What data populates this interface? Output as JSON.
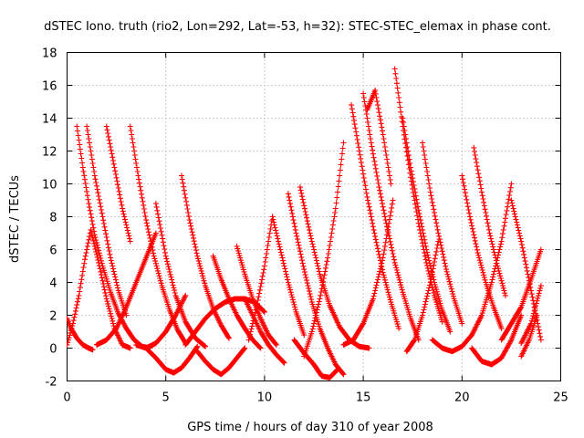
{
  "chart_data": {
    "type": "scatter",
    "title": "dSTEC Iono. truth (rio2, Lon=292, Lat=-53, h=32): STEC-STEC_elemax in phase cont.",
    "xlabel": "GPS time / hours of day 310 of year 2008",
    "ylabel": "dSTEC  / TECUs",
    "xlim": [
      0,
      25
    ],
    "ylim": [
      -2,
      18
    ],
    "x_ticks": [
      0,
      5,
      10,
      15,
      20,
      25
    ],
    "y_ticks": [
      -2,
      0,
      2,
      4,
      6,
      8,
      10,
      12,
      14,
      16,
      18
    ],
    "grid": true,
    "marker": "+",
    "series_color": "#ff0000",
    "series": [
      {
        "x": [
          0.0,
          0.3,
          0.6,
          0.9,
          1.2,
          1.6,
          2.0,
          2.4,
          2.8,
          3.2
        ],
        "y": [
          0.2,
          1.5,
          3.2,
          5.4,
          7.2,
          5.2,
          3.0,
          1.2,
          0.2,
          0.0
        ]
      },
      {
        "x": [
          0.0,
          0.2,
          0.5,
          0.8,
          1.1,
          1.3
        ],
        "y": [
          1.8,
          1.2,
          0.6,
          0.2,
          0.0,
          -0.1
        ]
      },
      {
        "x": [
          0.5,
          0.8,
          1.1,
          1.4,
          1.8,
          2.2,
          2.6,
          3.0,
          3.4,
          3.8,
          4.2
        ],
        "y": [
          13.5,
          11.0,
          8.8,
          6.9,
          5.0,
          3.4,
          2.1,
          1.2,
          0.5,
          0.1,
          0.0
        ]
      },
      {
        "x": [
          1.0,
          1.4,
          1.8,
          2.2,
          2.6,
          3.0
        ],
        "y": [
          13.5,
          10.5,
          8.0,
          5.5,
          3.5,
          2.0
        ]
      },
      {
        "x": [
          2.0,
          2.4,
          2.8,
          3.2
        ],
        "y": [
          13.5,
          11.0,
          8.5,
          6.5
        ]
      },
      {
        "x": [
          1.5,
          2.0,
          2.5,
          3.0,
          3.5,
          4.0,
          4.5
        ],
        "y": [
          0.2,
          0.5,
          1.2,
          2.5,
          4.0,
          5.5,
          7.0
        ]
      },
      {
        "x": [
          3.2,
          3.6,
          4.0,
          4.4,
          4.8,
          5.2,
          5.6,
          6.0
        ],
        "y": [
          13.5,
          10.5,
          7.8,
          5.6,
          3.8,
          2.3,
          1.1,
          0.3
        ]
      },
      {
        "x": [
          3.5,
          4.0,
          4.5,
          5.0,
          5.5,
          6.0
        ],
        "y": [
          0.2,
          0.0,
          0.3,
          1.0,
          2.0,
          3.2
        ]
      },
      {
        "x": [
          4.5,
          5.0,
          5.5,
          6.0,
          6.5,
          7.0
        ],
        "y": [
          8.8,
          5.6,
          3.2,
          1.6,
          0.6,
          0.1
        ]
      },
      {
        "x": [
          4.0,
          4.5,
          5.0,
          5.4
        ],
        "y": [
          0.0,
          -0.6,
          -1.3,
          -1.5
        ]
      },
      {
        "x": [
          5.4,
          5.8,
          6.2,
          6.6
        ],
        "y": [
          -1.5,
          -1.2,
          -0.6,
          0.1
        ]
      },
      {
        "x": [
          5.8,
          6.2,
          6.6,
          7.0,
          7.4,
          7.8,
          8.2
        ],
        "y": [
          10.5,
          7.8,
          5.6,
          3.8,
          2.4,
          1.4,
          0.6
        ]
      },
      {
        "x": [
          6.6,
          7.0,
          7.4,
          7.8,
          8.2,
          8.6,
          9.0
        ],
        "y": [
          -0.2,
          -0.8,
          -1.3,
          -1.6,
          -1.2,
          -0.6,
          0.0
        ]
      },
      {
        "x": [
          6.0,
          6.5,
          7.0,
          7.5,
          8.0,
          8.5,
          9.0,
          9.5,
          10.0
        ],
        "y": [
          0.2,
          1.0,
          1.8,
          2.4,
          2.8,
          3.0,
          3.0,
          2.8,
          2.2
        ]
      },
      {
        "x": [
          7.4,
          7.8,
          8.2,
          8.6,
          9.0,
          9.4,
          9.8
        ],
        "y": [
          5.6,
          4.2,
          3.0,
          2.0,
          1.2,
          0.5,
          0.0
        ]
      },
      {
        "x": [
          8.6,
          9.0,
          9.4,
          9.8,
          10.2,
          10.6
        ],
        "y": [
          6.2,
          4.5,
          3.0,
          1.8,
          0.8,
          0.2
        ]
      },
      {
        "x": [
          9.0,
          9.4,
          9.8,
          10.2,
          10.6,
          11.0
        ],
        "y": [
          3.0,
          2.0,
          1.0,
          0.2,
          -0.4,
          -0.9
        ]
      },
      {
        "x": [
          9.2,
          9.6,
          10.0,
          10.4
        ],
        "y": [
          0.5,
          2.5,
          5.0,
          8.0
        ]
      },
      {
        "x": [
          10.4,
          10.8,
          11.2,
          11.6,
          12.0
        ],
        "y": [
          8.0,
          6.0,
          4.0,
          2.2,
          0.8
        ]
      },
      {
        "x": [
          11.2,
          11.6,
          12.0,
          12.4,
          12.8,
          13.2,
          13.6,
          14.0
        ],
        "y": [
          9.4,
          7.0,
          4.8,
          2.8,
          1.2,
          0.0,
          -1.0,
          -1.6
        ]
      },
      {
        "x": [
          11.5,
          12.0,
          12.5,
          12.9,
          13.3,
          13.7
        ],
        "y": [
          0.5,
          -0.3,
          -1.0,
          -1.7,
          -1.8,
          -1.3
        ]
      },
      {
        "x": [
          12.0,
          12.4,
          12.8,
          13.2,
          13.6,
          14.0
        ],
        "y": [
          -0.5,
          1.0,
          3.0,
          5.5,
          8.5,
          12.5
        ]
      },
      {
        "x": [
          11.8,
          12.3,
          12.8,
          13.3,
          13.8,
          14.3,
          14.8,
          15.3
        ],
        "y": [
          9.8,
          7.0,
          4.5,
          2.6,
          1.3,
          0.5,
          0.1,
          0.0
        ]
      },
      {
        "x": [
          14.0,
          14.5,
          15.0,
          15.5,
          16.0,
          16.5
        ],
        "y": [
          0.2,
          0.5,
          1.5,
          3.0,
          5.5,
          9.0
        ]
      },
      {
        "x": [
          14.4,
          14.8,
          15.2,
          15.6,
          16.0,
          16.4,
          16.8
        ],
        "y": [
          14.8,
          12.0,
          9.2,
          6.8,
          4.6,
          2.8,
          1.2
        ]
      },
      {
        "x": [
          15.2,
          15.6,
          16.0,
          16.4
        ],
        "y": [
          14.5,
          15.7,
          13.0,
          10.0
        ]
      },
      {
        "x": [
          15.0,
          15.4,
          15.8,
          16.2,
          16.6,
          17.0,
          17.4,
          17.8
        ],
        "y": [
          15.5,
          12.5,
          9.8,
          7.4,
          5.2,
          3.4,
          1.8,
          0.5
        ]
      },
      {
        "x": [
          16.6,
          17.0,
          17.4,
          17.8,
          18.2,
          18.6,
          19.0
        ],
        "y": [
          17.0,
          13.5,
          10.4,
          7.6,
          5.2,
          3.2,
          1.6
        ]
      },
      {
        "x": [
          17.0,
          17.4,
          17.8,
          18.2,
          18.6,
          19.0,
          19.4
        ],
        "y": [
          14.0,
          11.0,
          8.4,
          6.0,
          4.0,
          2.3,
          1.0
        ]
      },
      {
        "x": [
          17.2,
          17.6,
          18.0,
          18.4,
          18.8
        ],
        "y": [
          -0.2,
          0.5,
          2.0,
          4.0,
          6.5
        ]
      },
      {
        "x": [
          18.0,
          18.4,
          18.8,
          19.2,
          19.6,
          20.0
        ],
        "y": [
          12.5,
          9.5,
          7.0,
          4.8,
          3.0,
          1.5
        ]
      },
      {
        "x": [
          18.5,
          19.0,
          19.5,
          20.0,
          20.5,
          21.0
        ],
        "y": [
          0.5,
          0.0,
          -0.2,
          0.1,
          0.8,
          2.0
        ]
      },
      {
        "x": [
          20.0,
          20.4,
          20.8,
          21.2,
          21.6,
          22.0
        ],
        "y": [
          10.5,
          8.0,
          5.8,
          4.0,
          2.5,
          1.2
        ]
      },
      {
        "x": [
          20.6,
          21.0,
          21.4,
          21.8,
          22.2
        ],
        "y": [
          12.2,
          9.5,
          7.0,
          5.0,
          3.2
        ]
      },
      {
        "x": [
          20.5,
          21.0,
          21.5,
          22.0,
          22.5,
          23.0
        ],
        "y": [
          0.0,
          -0.8,
          -1.0,
          -0.6,
          0.5,
          2.0
        ]
      },
      {
        "x": [
          21.0,
          21.5,
          22.0,
          22.5
        ],
        "y": [
          2.0,
          4.0,
          6.5,
          10.0
        ]
      },
      {
        "x": [
          22.5,
          23.0,
          23.5,
          24.0
        ],
        "y": [
          9.0,
          6.5,
          3.5,
          0.5
        ]
      },
      {
        "x": [
          22.0,
          22.5,
          23.0,
          23.5,
          24.0
        ],
        "y": [
          0.5,
          1.5,
          2.5,
          4.2,
          6.0
        ]
      },
      {
        "x": [
          23.0,
          23.5,
          24.0
        ],
        "y": [
          0.3,
          1.5,
          3.8
        ]
      },
      {
        "x": [
          23.0,
          23.4,
          23.8
        ],
        "y": [
          -0.5,
          0.5,
          2.0
        ]
      }
    ]
  }
}
